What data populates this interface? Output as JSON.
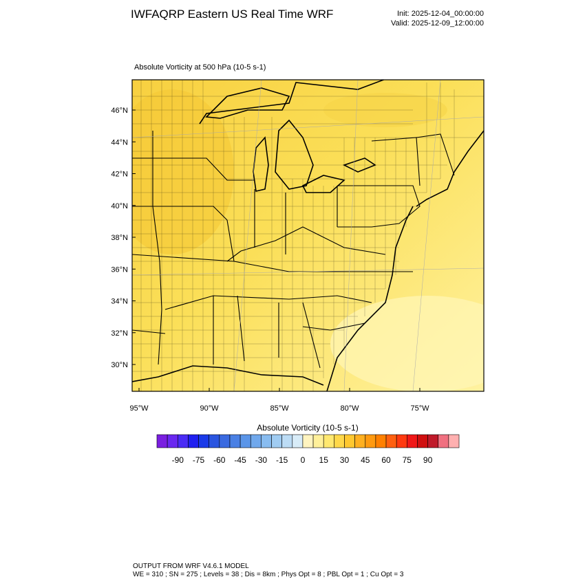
{
  "header": {
    "title": "IWFAQRP Eastern US Real Time WRF",
    "init": "Init: 2025-12-04_00:00:00",
    "valid": "Valid: 2025-12-09_12:00:00"
  },
  "map": {
    "subtitle": "Absolute Vorticity at 500 hPa   (10-5 s-1)",
    "lat_labels": [
      "46°N",
      "44°N",
      "42°N",
      "40°N",
      "38°N",
      "36°N",
      "34°N",
      "32°N",
      "30°N"
    ],
    "lon_labels": [
      "95°W",
      "90°W",
      "85°W",
      "80°W",
      "75°W"
    ]
  },
  "colorbar": {
    "title": "Absolute Vorticity  (10-5 s-1)",
    "ticks": [
      -90,
      -75,
      -60,
      -45,
      -30,
      -15,
      0,
      15,
      30,
      45,
      60,
      75,
      90
    ],
    "colors": [
      "#7a1fe0",
      "#6a28f0",
      "#4a2cf5",
      "#2020f0",
      "#1a3ae8",
      "#2a55e0",
      "#3a6ae0",
      "#4a80e4",
      "#5a95e8",
      "#70a8ec",
      "#88bcf0",
      "#a0ccf2",
      "#bcdcf5",
      "#d8ecf8",
      "#fff4c0",
      "#fff09a",
      "#ffe870",
      "#ffd84a",
      "#ffc830",
      "#ffb020",
      "#ff9a10",
      "#ff8000",
      "#ff6010",
      "#ff3a10",
      "#f01818",
      "#d01010",
      "#c01a2a",
      "#f07080",
      "#ffb0b0"
    ]
  },
  "footer": {
    "line1": "OUTPUT FROM WRF V4.6.1 MODEL",
    "line2": "WE = 310 ; SN = 275 ; Levels = 38 ; Dis = 8km ; Phys Opt = 8 ; PBL Opt = 1 ; Cu Opt = 3"
  }
}
